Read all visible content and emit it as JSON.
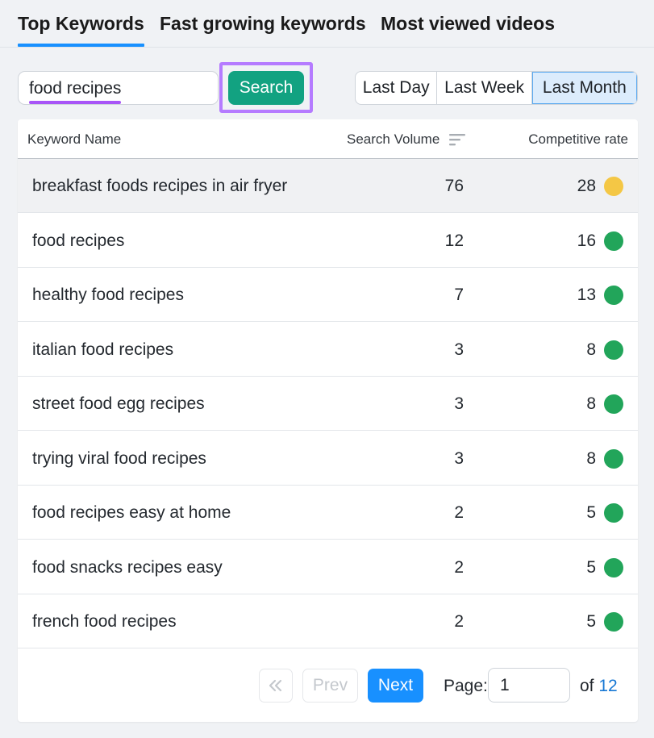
{
  "tabs": [
    {
      "label": "Top Keywords",
      "active": true
    },
    {
      "label": "Fast growing keywords",
      "active": false
    },
    {
      "label": "Most viewed videos",
      "active": false
    }
  ],
  "search": {
    "value": "food recipes",
    "button_label": "Search"
  },
  "period": {
    "options": [
      "Last Day",
      "Last Week",
      "Last Month"
    ],
    "selected": "Last Month"
  },
  "table": {
    "columns": [
      "Keyword Name",
      "Search Volume",
      "Competitive rate"
    ],
    "rows": [
      {
        "keyword": "breakfast foods recipes in air fryer",
        "volume": "76",
        "rate": "28",
        "color": "#f4c745"
      },
      {
        "keyword": "food recipes",
        "volume": "12",
        "rate": "16",
        "color": "#22a55a"
      },
      {
        "keyword": "healthy food recipes",
        "volume": "7",
        "rate": "13",
        "color": "#22a55a"
      },
      {
        "keyword": "italian food recipes",
        "volume": "3",
        "rate": "8",
        "color": "#22a55a"
      },
      {
        "keyword": "street food egg recipes",
        "volume": "3",
        "rate": "8",
        "color": "#22a55a"
      },
      {
        "keyword": "trying viral food recipes",
        "volume": "3",
        "rate": "8",
        "color": "#22a55a"
      },
      {
        "keyword": "food recipes easy at home",
        "volume": "2",
        "rate": "5",
        "color": "#22a55a"
      },
      {
        "keyword": "food snacks recipes easy",
        "volume": "2",
        "rate": "5",
        "color": "#22a55a"
      },
      {
        "keyword": "french food recipes",
        "volume": "2",
        "rate": "5",
        "color": "#22a55a"
      }
    ]
  },
  "pagination": {
    "first_label": "«",
    "prev_label": "Prev",
    "next_label": "Next",
    "page_label": "Page:",
    "current_page": "1",
    "of_label": "of",
    "total_pages": "12"
  }
}
